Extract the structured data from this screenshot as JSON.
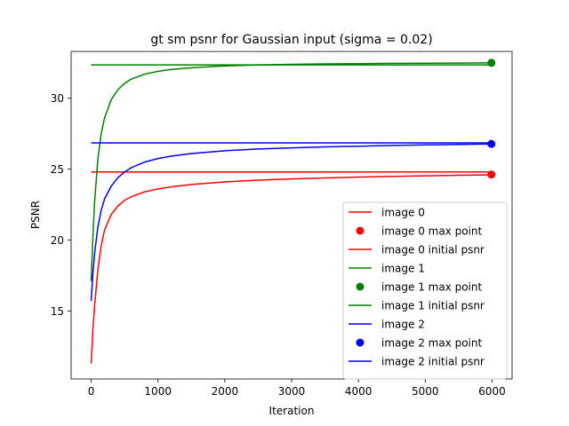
{
  "chart_data": {
    "type": "line",
    "title": "gt sm psnr for Gaussian input (sigma = 0.02)",
    "xlabel": "Iteration",
    "ylabel": "PSNR",
    "xlim": [
      -300,
      6300
    ],
    "ylim": [
      10.2,
      33.3
    ],
    "xticks": [
      0,
      1000,
      2000,
      3000,
      4000,
      5000,
      6000
    ],
    "xtick_labels": [
      "0",
      "1000",
      "2000",
      "3000",
      "4000",
      "5000",
      "6000"
    ],
    "yticks": [
      15,
      20,
      25,
      30
    ],
    "ytick_labels": [
      "15",
      "20",
      "25",
      "30"
    ],
    "grid": false,
    "legend_position": "lower-right",
    "series": [
      {
        "name": "image 0",
        "color": "#ff0000",
        "kind": "curve",
        "x": [
          0,
          25,
          50,
          100,
          150,
          200,
          300,
          400,
          500,
          600,
          800,
          1000,
          1200,
          1500,
          2000,
          2500,
          3000,
          3500,
          4000,
          4500,
          5000,
          5500,
          6000
        ],
        "y": [
          11.3,
          13.6,
          15.3,
          17.9,
          19.6,
          20.7,
          21.8,
          22.4,
          22.8,
          23.05,
          23.4,
          23.6,
          23.75,
          23.92,
          24.1,
          24.22,
          24.31,
          24.38,
          24.44,
          24.49,
          24.53,
          24.57,
          24.6
        ]
      },
      {
        "name": "image 0 max point",
        "color": "#ff0000",
        "kind": "point",
        "x": [
          5990
        ],
        "y": [
          24.62
        ]
      },
      {
        "name": "image 0 initial psnr",
        "color": "#ff0000",
        "kind": "hline",
        "x": [
          0,
          6000
        ],
        "y": [
          24.8,
          24.8
        ]
      },
      {
        "name": "image 1",
        "color": "#008000",
        "kind": "curve",
        "x": [
          0,
          25,
          50,
          100,
          150,
          200,
          300,
          400,
          500,
          600,
          800,
          1000,
          1200,
          1500,
          2000,
          2500,
          3000,
          3500,
          4000,
          4500,
          5000,
          5500,
          6000
        ],
        "y": [
          17.1,
          20.1,
          22.6,
          25.7,
          27.5,
          28.6,
          29.9,
          30.6,
          31.05,
          31.35,
          31.7,
          31.9,
          32.03,
          32.15,
          32.28,
          32.35,
          32.39,
          32.42,
          32.44,
          32.46,
          32.47,
          32.48,
          32.5
        ]
      },
      {
        "name": "image 1 max point",
        "color": "#008000",
        "kind": "point",
        "x": [
          5990
        ],
        "y": [
          32.5
        ]
      },
      {
        "name": "image 1 initial psnr",
        "color": "#008000",
        "kind": "hline",
        "x": [
          0,
          6000
        ],
        "y": [
          32.35,
          32.35
        ]
      },
      {
        "name": "image 2",
        "color": "#0000ff",
        "kind": "curve",
        "x": [
          0,
          25,
          50,
          100,
          150,
          200,
          300,
          400,
          500,
          600,
          800,
          1000,
          1200,
          1500,
          2000,
          2500,
          3000,
          3500,
          4000,
          4500,
          5000,
          5500,
          6000
        ],
        "y": [
          15.7,
          17.6,
          19.0,
          20.9,
          22.1,
          22.9,
          23.8,
          24.4,
          24.8,
          25.1,
          25.5,
          25.75,
          25.92,
          26.1,
          26.3,
          26.42,
          26.5,
          26.57,
          26.62,
          26.67,
          26.71,
          26.74,
          26.77
        ]
      },
      {
        "name": "image 2 max point",
        "color": "#0000ff",
        "kind": "point",
        "x": [
          5990
        ],
        "y": [
          26.78
        ]
      },
      {
        "name": "image 2 initial psnr",
        "color": "#0000ff",
        "kind": "hline",
        "x": [
          0,
          6000
        ],
        "y": [
          26.85,
          26.85
        ]
      }
    ]
  }
}
